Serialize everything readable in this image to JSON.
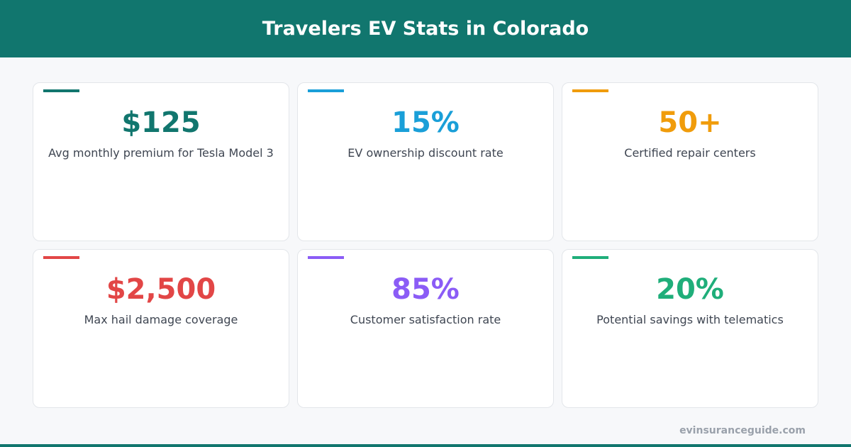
{
  "header": {
    "title": "Travelers EV Stats in Colorado",
    "color": "#11766e"
  },
  "cards": [
    {
      "value": "$125",
      "label": "Avg monthly premium for Tesla Model 3",
      "color": "#11766e"
    },
    {
      "value": "15%",
      "label": "EV ownership discount rate",
      "color": "#1a9fd8"
    },
    {
      "value": "50+",
      "label": "Certified repair centers",
      "color": "#f09c0b"
    },
    {
      "value": "$2,500",
      "label": "Max hail damage coverage",
      "color": "#e24646"
    },
    {
      "value": "85%",
      "label": "Customer satisfaction rate",
      "color": "#8b5cf6"
    },
    {
      "value": "20%",
      "label": "Potential savings with telematics",
      "color": "#1fae7a"
    }
  ],
  "footer": {
    "text": "evinsuranceguide.com"
  }
}
